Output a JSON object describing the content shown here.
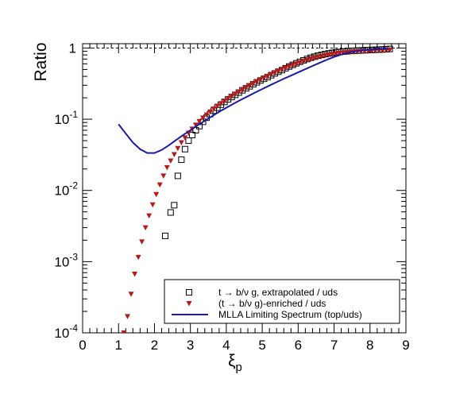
{
  "chart_data": {
    "type": "scatter",
    "xlabel": "ξ",
    "xlabel_sub": "p",
    "ylabel": "Ratio",
    "xlim": [
      0,
      9
    ],
    "ylim": [
      0.0001,
      1.15
    ],
    "yscale": "log",
    "x_ticks": [
      "0",
      "1",
      "2",
      "3",
      "4",
      "5",
      "6",
      "7",
      "8",
      "9"
    ],
    "y_ticks": [
      {
        "value": 0.0001,
        "base": "10",
        "exp": "-4"
      },
      {
        "value": 0.001,
        "base": "10",
        "exp": "-3"
      },
      {
        "value": 0.01,
        "base": "10",
        "exp": "-2"
      },
      {
        "value": 0.1,
        "base": "10",
        "exp": "-1"
      },
      {
        "value": 1,
        "base": "1",
        "exp": ""
      }
    ],
    "reference_line": {
      "y": 1,
      "style": "dashed"
    },
    "legend_position": "bottom-right",
    "series": [
      {
        "name": "t → b/ν g, extrapolated / uds",
        "marker": "open-square",
        "color": "#000000",
        "x": [
          2.3,
          2.45,
          2.55,
          2.65,
          2.75,
          2.85,
          2.95,
          3.05,
          3.15,
          3.25,
          3.35,
          3.45,
          3.55,
          3.65,
          3.75,
          3.85,
          3.95,
          4.05,
          4.15,
          4.25,
          4.35,
          4.45,
          4.55,
          4.65,
          4.75,
          4.85,
          4.95,
          5.05,
          5.15,
          5.25,
          5.35,
          5.45,
          5.55,
          5.65,
          5.75,
          5.85,
          5.95,
          6.05,
          6.15,
          6.25,
          6.35,
          6.45,
          6.55,
          6.65,
          6.75,
          6.85,
          6.95,
          7.05,
          7.15,
          7.25,
          7.35,
          7.45,
          7.55,
          7.65,
          7.75,
          7.85,
          7.95,
          8.05,
          8.15,
          8.25,
          8.35,
          8.45,
          8.55
        ],
        "y": [
          0.0023,
          0.0049,
          0.0062,
          0.016,
          0.027,
          0.038,
          0.05,
          0.06,
          0.07,
          0.08,
          0.092,
          0.105,
          0.118,
          0.132,
          0.145,
          0.16,
          0.175,
          0.19,
          0.205,
          0.22,
          0.237,
          0.255,
          0.272,
          0.29,
          0.31,
          0.33,
          0.35,
          0.37,
          0.39,
          0.415,
          0.44,
          0.465,
          0.49,
          0.52,
          0.55,
          0.58,
          0.61,
          0.64,
          0.67,
          0.7,
          0.73,
          0.755,
          0.78,
          0.8,
          0.82,
          0.84,
          0.855,
          0.87,
          0.88,
          0.89,
          0.9,
          0.91,
          0.915,
          0.92,
          0.925,
          0.93,
          0.935,
          0.94,
          0.945,
          0.95,
          0.955,
          0.96,
          0.97
        ]
      },
      {
        "name": "(t → b/ν g)-enriched / uds",
        "marker": "filled-down-triangle",
        "color": "#b51a1a",
        "x": [
          1.15,
          1.25,
          1.35,
          1.45,
          1.55,
          1.65,
          1.75,
          1.85,
          1.95,
          2.05,
          2.15,
          2.25,
          2.35,
          2.45,
          2.55,
          2.65,
          2.75,
          2.85,
          2.95,
          3.05,
          3.15,
          3.25,
          3.35,
          3.45,
          3.55,
          3.65,
          3.75,
          3.85,
          3.95,
          4.05,
          4.15,
          4.25,
          4.35,
          4.45,
          4.55,
          4.65,
          4.75,
          4.85,
          4.95,
          5.05,
          5.15,
          5.25,
          5.35,
          5.45,
          5.55,
          5.65,
          5.75,
          5.85,
          5.95,
          6.05,
          6.15,
          6.25,
          6.35,
          6.45,
          6.55,
          6.65,
          6.75,
          6.85,
          6.95,
          7.05,
          7.15,
          7.25,
          7.35,
          7.45,
          7.55,
          7.65,
          7.75,
          7.85,
          7.95,
          8.05,
          8.15,
          8.25,
          8.35,
          8.45,
          8.55
        ],
        "y": [
          0.0001,
          0.00017,
          0.00035,
          0.00067,
          0.00115,
          0.0019,
          0.003,
          0.0044,
          0.0063,
          0.0088,
          0.012,
          0.016,
          0.021,
          0.026,
          0.032,
          0.039,
          0.047,
          0.055,
          0.064,
          0.073,
          0.083,
          0.093,
          0.104,
          0.115,
          0.127,
          0.14,
          0.153,
          0.166,
          0.18,
          0.195,
          0.21,
          0.226,
          0.243,
          0.26,
          0.278,
          0.297,
          0.317,
          0.337,
          0.358,
          0.38,
          0.403,
          0.426,
          0.45,
          0.475,
          0.5,
          0.525,
          0.55,
          0.575,
          0.6,
          0.625,
          0.65,
          0.675,
          0.7,
          0.72,
          0.74,
          0.76,
          0.78,
          0.8,
          0.815,
          0.83,
          0.845,
          0.855,
          0.865,
          0.875,
          0.885,
          0.89,
          0.895,
          0.9,
          0.905,
          0.91,
          0.915,
          0.92,
          0.925,
          0.93,
          0.935
        ]
      },
      {
        "name": "MLLA Limiting Spectrum (top/uds)",
        "marker": "line",
        "color": "#1a1aa8",
        "x": [
          1.0,
          1.2,
          1.4,
          1.6,
          1.8,
          2.0,
          2.2,
          2.4,
          2.6,
          2.8,
          3.0,
          3.2,
          3.4,
          3.6,
          3.8,
          4.0,
          4.2,
          4.4,
          4.6,
          4.8,
          5.0,
          5.2,
          5.4,
          5.6,
          5.8,
          6.0,
          6.2,
          6.4,
          6.6,
          6.8,
          7.0,
          7.2,
          7.4,
          7.6,
          7.8,
          8.0,
          8.2,
          8.4,
          8.5
        ],
        "y": [
          0.085,
          0.063,
          0.047,
          0.038,
          0.0335,
          0.0335,
          0.037,
          0.043,
          0.051,
          0.06,
          0.07,
          0.082,
          0.095,
          0.11,
          0.127,
          0.145,
          0.165,
          0.187,
          0.21,
          0.237,
          0.265,
          0.297,
          0.332,
          0.37,
          0.41,
          0.455,
          0.505,
          0.56,
          0.62,
          0.685,
          0.75,
          0.81,
          0.86,
          0.9,
          0.93,
          0.95,
          0.965,
          0.975,
          0.98
        ]
      }
    ]
  }
}
